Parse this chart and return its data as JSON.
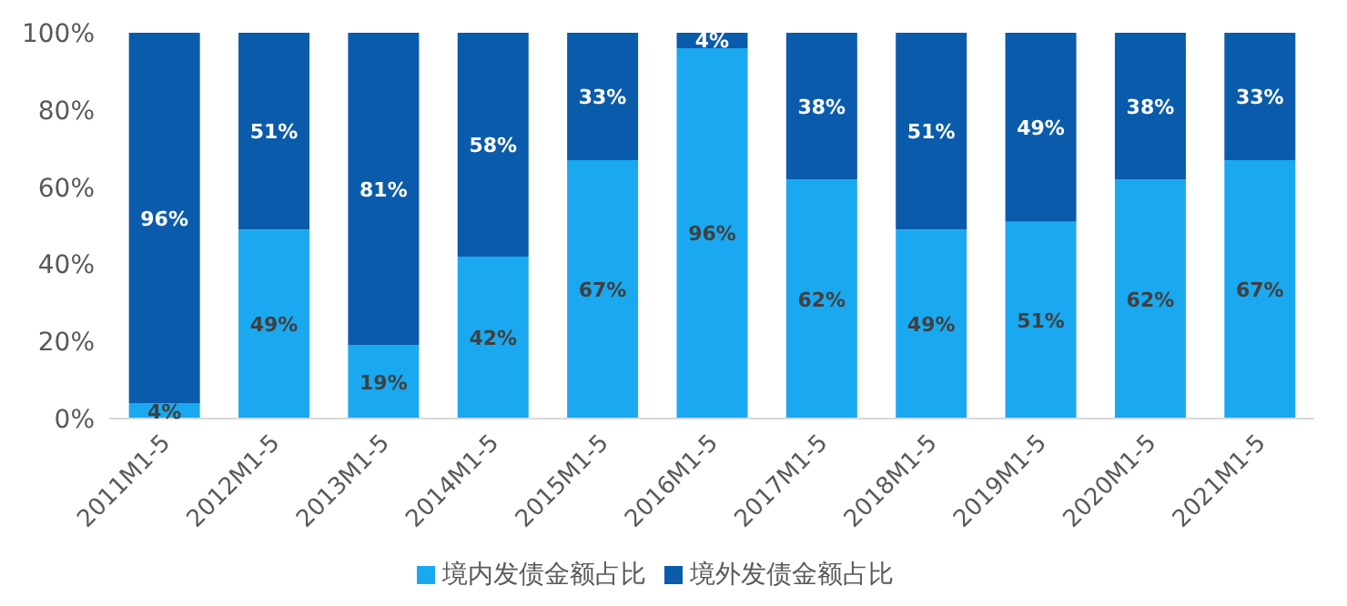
{
  "chart_data": {
    "type": "bar",
    "stacked": true,
    "categories": [
      "2011M1-5",
      "2012M1-5",
      "2013M1-5",
      "2014M1-5",
      "2015M1-5",
      "2016M1-5",
      "2017M1-5",
      "2018M1-5",
      "2019M1-5",
      "2020M1-5",
      "2021M1-5"
    ],
    "series": [
      {
        "name": "境内发债金额占比",
        "color": "#1aa9f0",
        "values": [
          4,
          49,
          19,
          42,
          67,
          96,
          62,
          49,
          51,
          62,
          67
        ],
        "value_labels": [
          "4%",
          "49%",
          "19%",
          "42%",
          "67%",
          "96%",
          "62%",
          "49%",
          "51%",
          "62%",
          "67%"
        ]
      },
      {
        "name": "境外发债金额占比",
        "color": "#0a5bab",
        "values": [
          96,
          51,
          81,
          58,
          33,
          4,
          38,
          51,
          49,
          38,
          33
        ],
        "value_labels": [
          "96%",
          "51%",
          "81%",
          "58%",
          "33%",
          "4%",
          "38%",
          "51%",
          "49%",
          "38%",
          "33%"
        ]
      }
    ],
    "ylim": [
      0,
      100
    ],
    "yticks": [
      {
        "value": 0,
        "label": "0%"
      },
      {
        "value": 20,
        "label": "20%"
      },
      {
        "value": 40,
        "label": "40%"
      },
      {
        "value": 60,
        "label": "60%"
      },
      {
        "value": 80,
        "label": "80%"
      },
      {
        "value": 100,
        "label": "100%"
      }
    ],
    "grid": false,
    "legend": "bottom"
  }
}
